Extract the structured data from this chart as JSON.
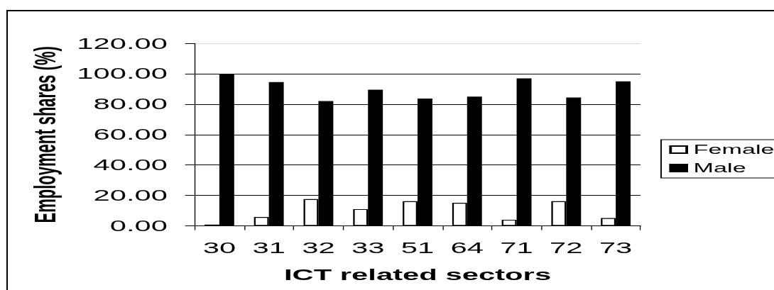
{
  "chart_data": {
    "type": "bar",
    "xlabel": "ICT related sectors",
    "ylabel": "Employment shares (%)",
    "categories": [
      "30",
      "31",
      "32",
      "33",
      "51",
      "64",
      "71",
      "72",
      "73"
    ],
    "series": [
      {
        "name": "Female",
        "color": "#ffffff",
        "values": [
          0.8,
          5.8,
          17.6,
          11.0,
          16.2,
          15.1,
          4.0,
          16.2,
          5.1
        ]
      },
      {
        "name": "Male",
        "color": "#000000",
        "values": [
          99.5,
          94.5,
          82.0,
          89.5,
          83.7,
          84.9,
          96.9,
          84.3,
          94.9
        ]
      }
    ],
    "ylim": [
      0,
      120
    ],
    "yticks": [
      {
        "value": 0,
        "label": "0.00"
      },
      {
        "value": 20,
        "label": "20.00"
      },
      {
        "value": 40,
        "label": "40.00"
      },
      {
        "value": 60,
        "label": "60.00"
      },
      {
        "value": 80,
        "label": "80.00"
      },
      {
        "value": 100,
        "label": "100.00"
      },
      {
        "value": 120,
        "label": "120.00"
      }
    ],
    "grid": "y",
    "legend": "right"
  }
}
